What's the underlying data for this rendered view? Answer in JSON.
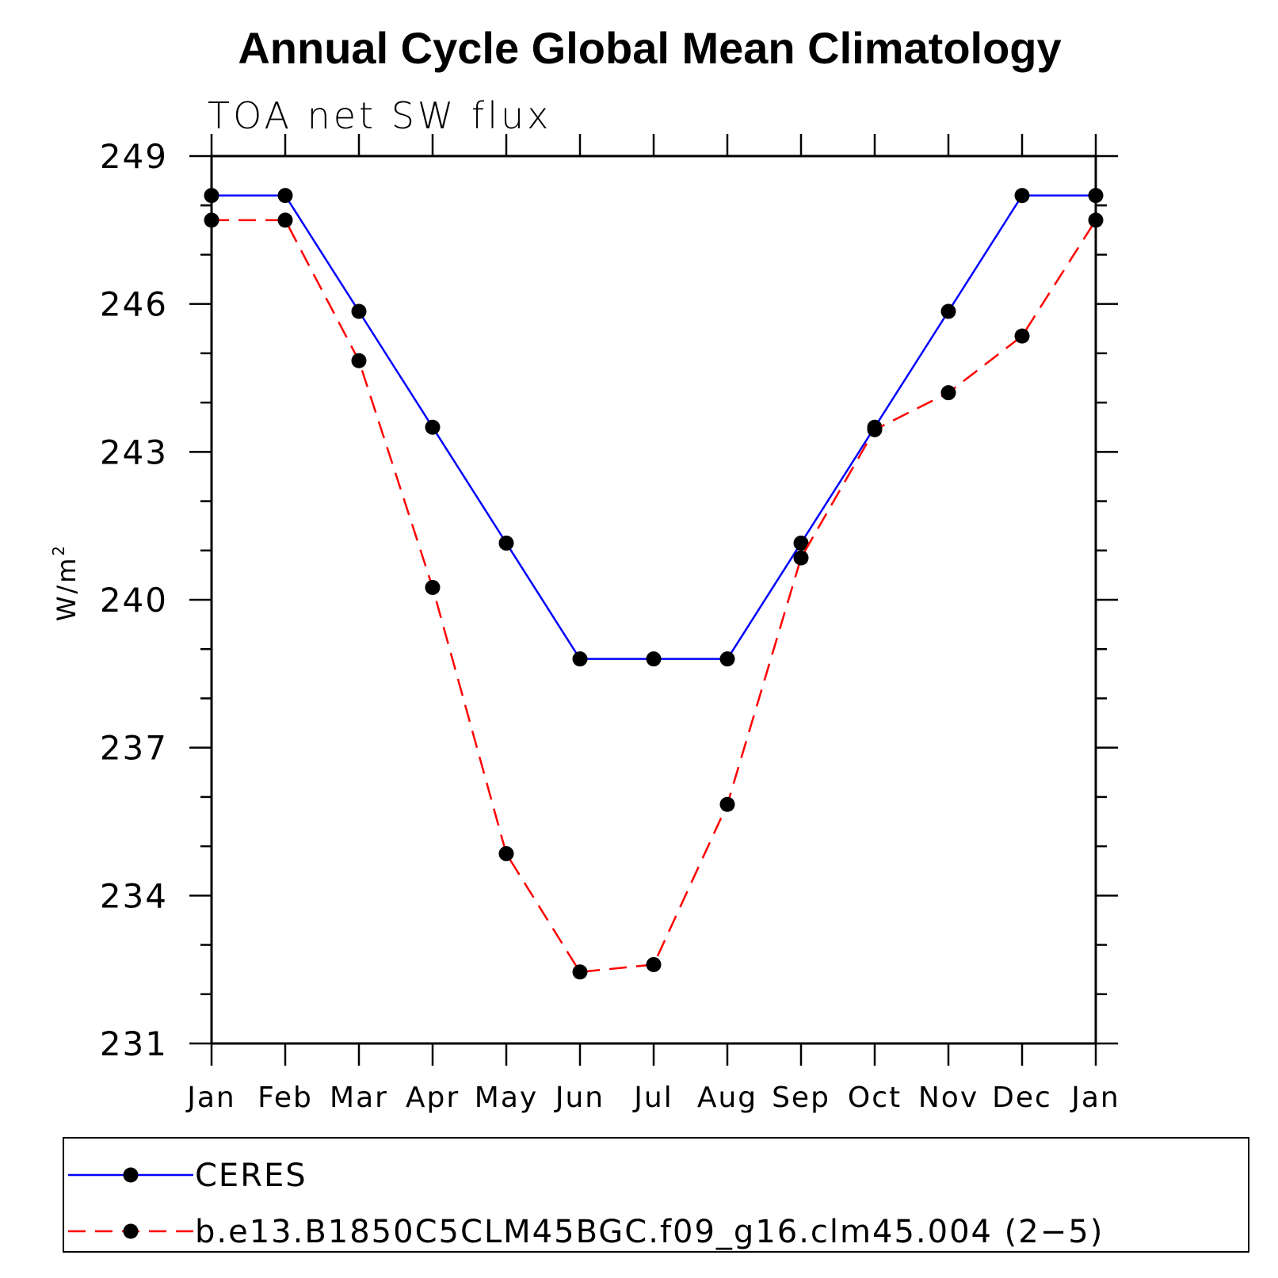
{
  "chart_data": {
    "type": "line",
    "title": "Annual Cycle Global Mean Climatology",
    "subtitle": "TOA net SW flux",
    "ylabel": "W/m",
    "ylabel_sup": "2",
    "ylim": [
      231,
      249
    ],
    "yticks": [
      231,
      234,
      237,
      240,
      243,
      246,
      249
    ],
    "categories": [
      "Jan",
      "Feb",
      "Mar",
      "Apr",
      "May",
      "Jun",
      "Jul",
      "Aug",
      "Sep",
      "Oct",
      "Nov",
      "Dec",
      "Jan"
    ],
    "series": [
      {
        "name": "CERES",
        "color": "#0000ff",
        "style": "solid",
        "values": [
          248.2,
          248.2,
          245.85,
          243.5,
          241.15,
          238.8,
          238.8,
          238.8,
          241.15,
          243.5,
          245.85,
          248.2,
          248.2
        ]
      },
      {
        "name": "b.e13.B1850C5CLM45BGC.f09_g16.clm45.004 (2−5)",
        "color": "#ff0000",
        "style": "dashed",
        "values": [
          247.7,
          247.7,
          244.85,
          240.25,
          234.85,
          232.45,
          232.6,
          235.85,
          240.85,
          243.45,
          244.2,
          245.35,
          247.7
        ]
      }
    ],
    "legend_position": "bottom"
  }
}
